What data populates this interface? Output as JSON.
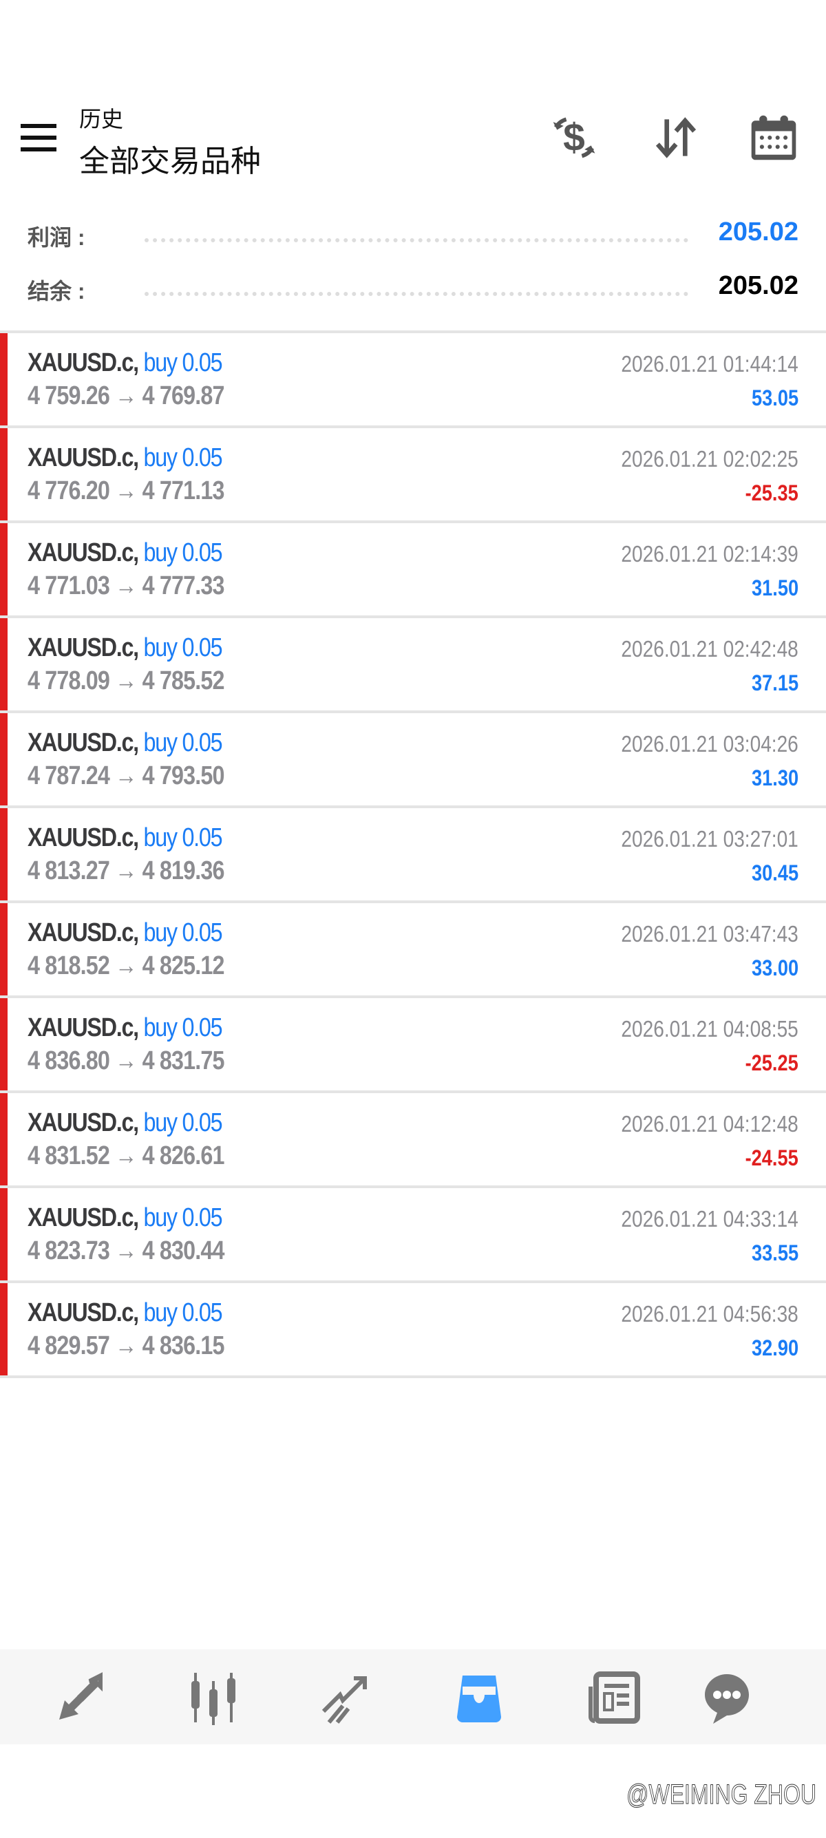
{
  "header": {
    "subtitle": "历史",
    "title": "全部交易品种",
    "icons": [
      "menu-icon",
      "dollar-exchange-icon",
      "sort-icon",
      "calendar-icon"
    ]
  },
  "summary": {
    "profit_label": "利润 :",
    "profit_value": "205.02",
    "balance_label": "结余 :",
    "balance_value": "205.02"
  },
  "colors": {
    "blue": "#1a7cf5",
    "red": "#e01f1f",
    "gray": "#8c8c90",
    "nav_active": "#42a0ff"
  },
  "trades": [
    {
      "symbol": "XAUUSD.c,",
      "side": "buy 0.05",
      "prices": "4 759.26 → 4 769.87",
      "time": "2026.01.21 01:44:14",
      "profit": "53.05",
      "loss": false
    },
    {
      "symbol": "XAUUSD.c,",
      "side": "buy 0.05",
      "prices": "4 776.20 → 4 771.13",
      "time": "2026.01.21 02:02:25",
      "profit": "-25.35",
      "loss": true
    },
    {
      "symbol": "XAUUSD.c,",
      "side": "buy 0.05",
      "prices": "4 771.03 → 4 777.33",
      "time": "2026.01.21 02:14:39",
      "profit": "31.50",
      "loss": false
    },
    {
      "symbol": "XAUUSD.c,",
      "side": "buy 0.05",
      "prices": "4 778.09 → 4 785.52",
      "time": "2026.01.21 02:42:48",
      "profit": "37.15",
      "loss": false
    },
    {
      "symbol": "XAUUSD.c,",
      "side": "buy 0.05",
      "prices": "4 787.24 → 4 793.50",
      "time": "2026.01.21 03:04:26",
      "profit": "31.30",
      "loss": false
    },
    {
      "symbol": "XAUUSD.c,",
      "side": "buy 0.05",
      "prices": "4 813.27 → 4 819.36",
      "time": "2026.01.21 03:27:01",
      "profit": "30.45",
      "loss": false
    },
    {
      "symbol": "XAUUSD.c,",
      "side": "buy 0.05",
      "prices": "4 818.52 → 4 825.12",
      "time": "2026.01.21 03:47:43",
      "profit": "33.00",
      "loss": false
    },
    {
      "symbol": "XAUUSD.c,",
      "side": "buy 0.05",
      "prices": "4 836.80 → 4 831.75",
      "time": "2026.01.21 04:08:55",
      "profit": "-25.25",
      "loss": true
    },
    {
      "symbol": "XAUUSD.c,",
      "side": "buy 0.05",
      "prices": "4 831.52 → 4 826.61",
      "time": "2026.01.21 04:12:48",
      "profit": "-24.55",
      "loss": true
    },
    {
      "symbol": "XAUUSD.c,",
      "side": "buy 0.05",
      "prices": "4 823.73 → 4 830.44",
      "time": "2026.01.21 04:33:14",
      "profit": "33.55",
      "loss": false
    },
    {
      "symbol": "XAUUSD.c,",
      "side": "buy 0.05",
      "prices": "4 829.57 → 4 836.15",
      "time": "2026.01.21 04:56:38",
      "profit": "32.90",
      "loss": false
    }
  ],
  "nav": {
    "items": [
      "quotes-icon",
      "chart-icon",
      "trade-icon",
      "history-icon",
      "news-icon",
      "chat-icon"
    ],
    "active": "history-icon"
  },
  "watermark": "@WEIMING ZHOU"
}
